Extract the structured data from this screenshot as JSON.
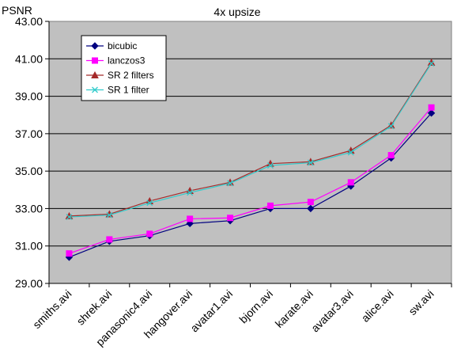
{
  "chart_data": {
    "type": "line",
    "title": "4x upsize",
    "xlabel": "",
    "ylabel": "PSNR",
    "ylim": [
      29.0,
      43.0
    ],
    "yticks": [
      "29.00",
      "31.00",
      "33.00",
      "35.00",
      "37.00",
      "39.00",
      "41.00",
      "43.00"
    ],
    "grid": "horizontal major lines",
    "legend_position": "top-left",
    "plot_background": "#c0c0c0",
    "categories": [
      "smiths.avi",
      "shrek.avi",
      "panasonic4.avi",
      "hangover.avi",
      "avatar1.avi",
      "bjorn.avi",
      "karate.avi",
      "avatar3.avi",
      "alice.avi",
      "sw.avi"
    ],
    "series": [
      {
        "name": "bicubic",
        "color": "#000080",
        "marker": "diamond",
        "values": [
          30.4,
          31.25,
          31.55,
          32.2,
          32.35,
          33.0,
          33.0,
          34.2,
          35.7,
          38.1
        ]
      },
      {
        "name": "lanczos3",
        "color": "#ff00ff",
        "marker": "square",
        "values": [
          30.6,
          31.35,
          31.65,
          32.45,
          32.5,
          33.15,
          33.35,
          34.4,
          35.85,
          38.4
        ]
      },
      {
        "name": "SR 2 filters",
        "color": "#a52a2a",
        "marker": "triangle",
        "values": [
          32.6,
          32.7,
          33.4,
          33.95,
          34.4,
          35.4,
          35.5,
          36.1,
          37.45,
          40.8
        ]
      },
      {
        "name": "SR 1 filter",
        "color": "#33cccc",
        "marker": "x",
        "values": [
          32.55,
          32.65,
          33.3,
          33.85,
          34.35,
          35.3,
          35.45,
          36.0,
          37.4,
          40.75
        ]
      }
    ]
  }
}
